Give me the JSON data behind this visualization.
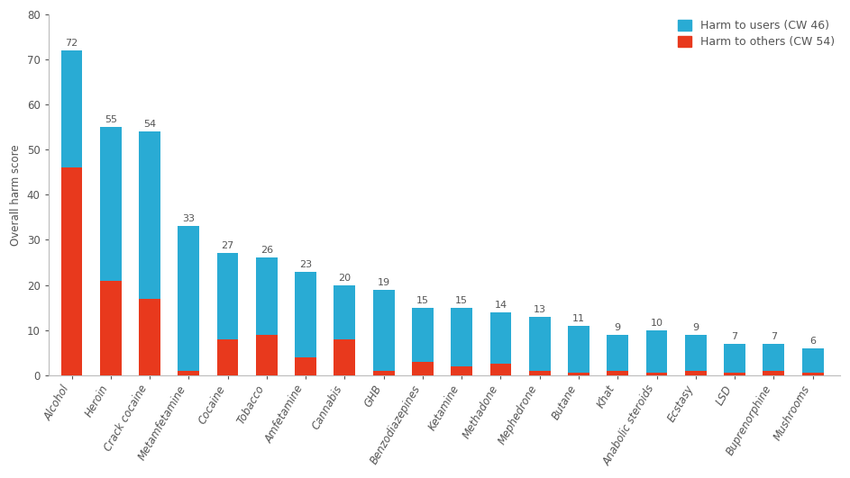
{
  "categories": [
    "Alcohol",
    "Heroin",
    "Crack cocaine",
    "Metamfetamine",
    "Cocaine",
    "Tobacco",
    "Amfetamine",
    "Cannabis",
    "GHB",
    "Benzodiazepines",
    "Ketamine",
    "Methadone",
    "Mephedrone",
    "Butane",
    "Khat",
    "Anabolic steroids",
    "Ecstasy",
    "LSD",
    "Buprenorphine",
    "Mushrooms"
  ],
  "harm_to_users": [
    26,
    34,
    37,
    32,
    19,
    17,
    19,
    12,
    18,
    12,
    13,
    11.5,
    12,
    10.5,
    8,
    9.5,
    8,
    6.5,
    6,
    5.5
  ],
  "harm_to_others": [
    46,
    21,
    17,
    1,
    8,
    9,
    4,
    8,
    1,
    3,
    2,
    2.5,
    1,
    0.5,
    1,
    0.5,
    1,
    0.5,
    1,
    0.5
  ],
  "totals": [
    72,
    55,
    54,
    33,
    27,
    26,
    23,
    20,
    19,
    15,
    15,
    14,
    13,
    11,
    9,
    10,
    9,
    7,
    7,
    6
  ],
  "color_users": "#29ABD4",
  "color_others": "#E8391D",
  "ylabel": "Overall harm score",
  "ylim": [
    0,
    80
  ],
  "yticks": [
    0,
    10,
    20,
    30,
    40,
    50,
    60,
    70,
    80
  ],
  "legend_users": "Harm to users (CW 46)",
  "legend_others": "Harm to others (CW 54)",
  "label_fontsize": 8.5,
  "tick_fontsize": 8.5,
  "legend_fontsize": 9,
  "value_fontsize": 8,
  "bar_width": 0.55
}
